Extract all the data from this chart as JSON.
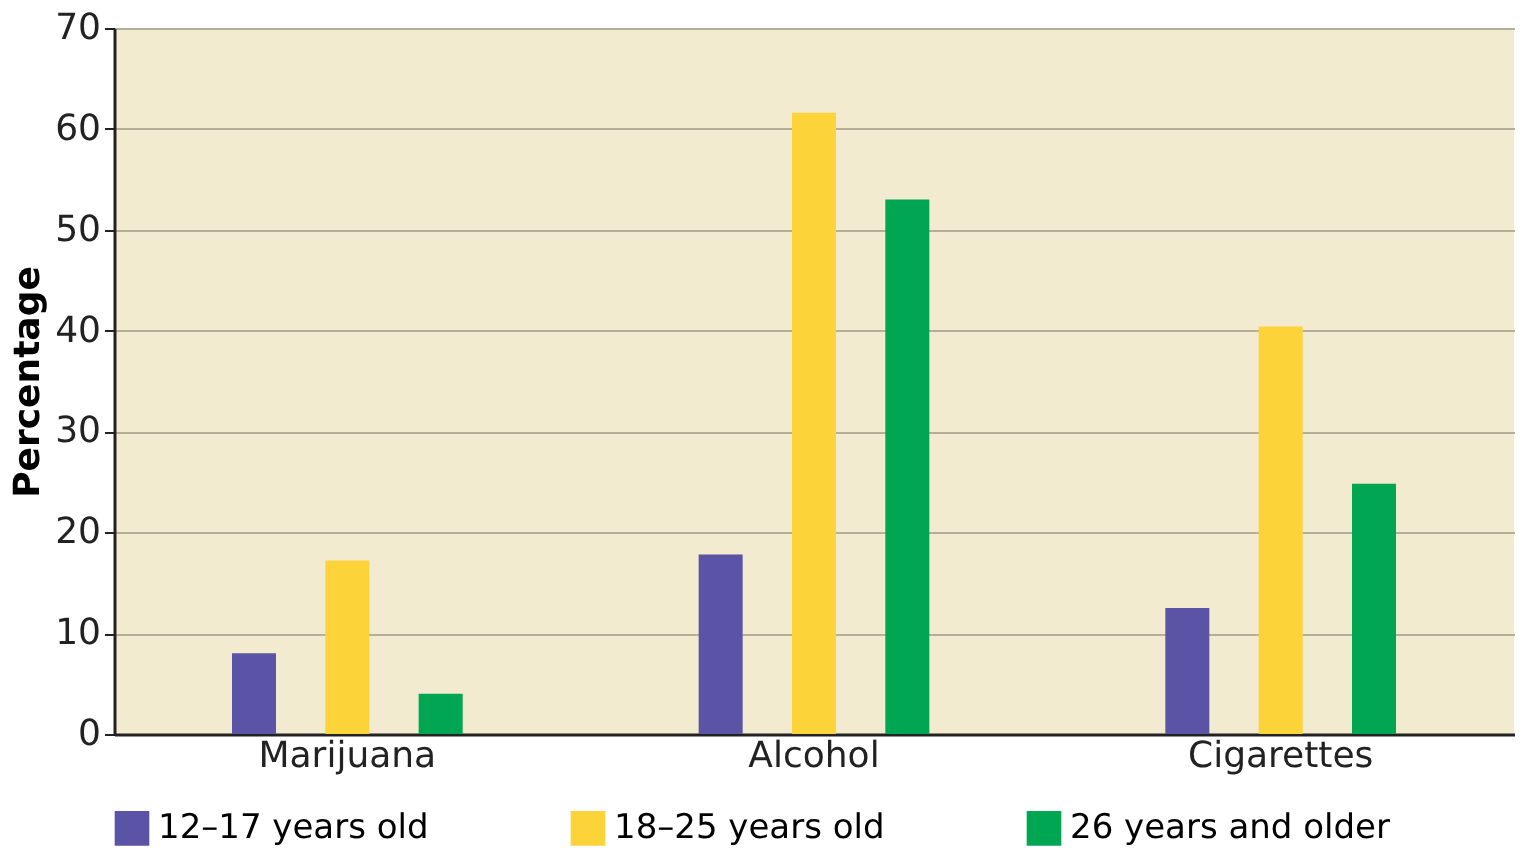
{
  "chart_data": {
    "type": "bar",
    "ylabel": "Percentage",
    "categories": [
      "Marijuana",
      "Alcohol",
      "Cigarettes"
    ],
    "series": [
      {
        "name": "12–17 years old",
        "color": "#5b54a6",
        "values": [
          8,
          17.8,
          12.5
        ]
      },
      {
        "name": "18–25 years old",
        "color": "#fdd33a",
        "values": [
          17.2,
          61.6,
          40.4
        ]
      },
      {
        "name": "26 years and older",
        "color": "#00a651",
        "values": [
          4,
          53,
          24.8
        ]
      }
    ],
    "ylim": [
      0,
      70
    ],
    "yticks": [
      0,
      10,
      20,
      30,
      40,
      50,
      60,
      70
    ],
    "grid": "y",
    "legend": "bottom"
  }
}
